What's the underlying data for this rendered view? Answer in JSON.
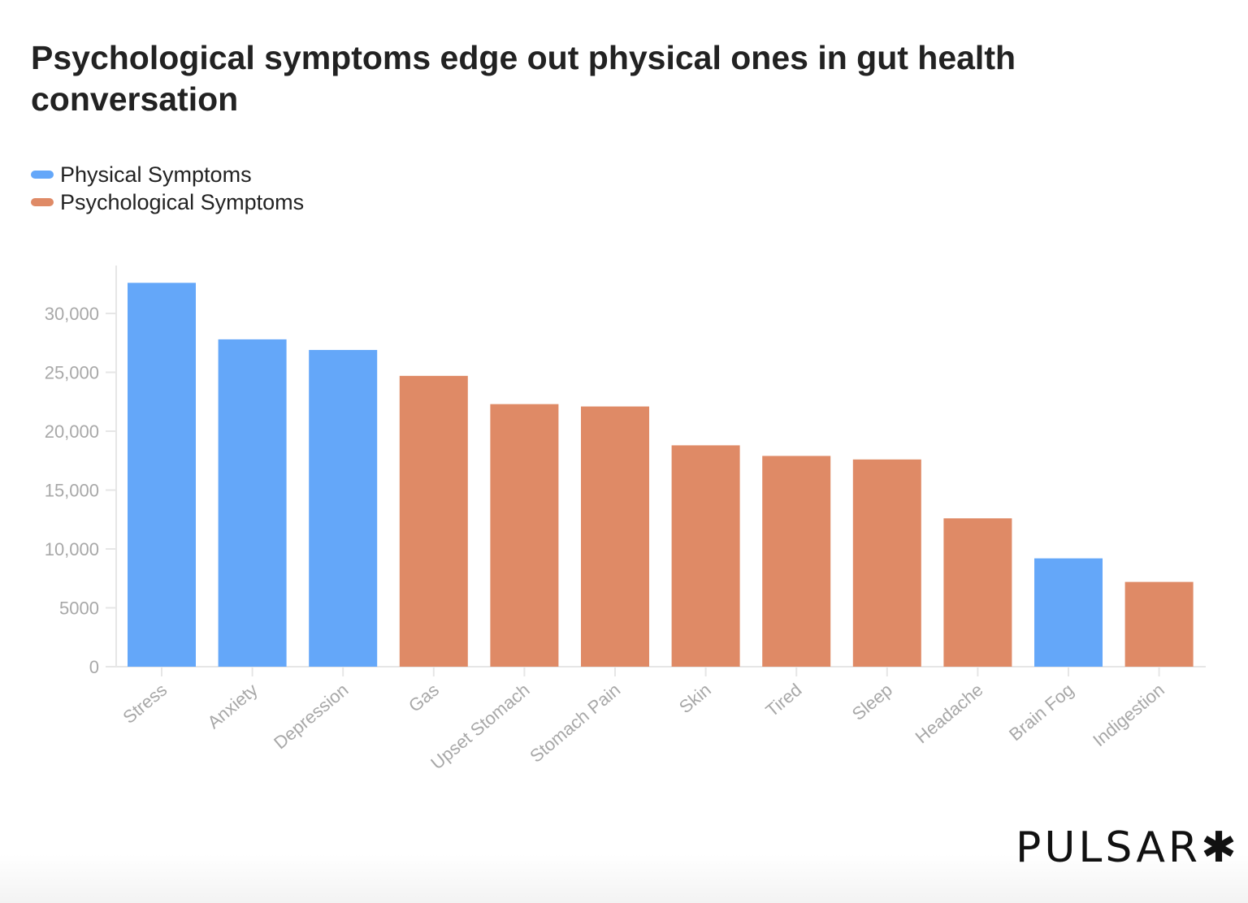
{
  "chart_data": {
    "type": "bar",
    "title": "Psychological symptoms edge out physical ones in gut health conversation",
    "xlabel": "",
    "ylabel": "",
    "ylim": [
      0,
      34000
    ],
    "yticks": [
      0,
      5000,
      10000,
      15000,
      20000,
      25000,
      30000
    ],
    "ytick_labels": [
      "0",
      "5000",
      "10,000",
      "15,000",
      "20,000",
      "25,000",
      "30,000"
    ],
    "grid": false,
    "legend_position": "top-left",
    "legend": [
      {
        "name": "Physical Symptoms",
        "color": "#64a7f9"
      },
      {
        "name": "Psychological Symptoms",
        "color": "#df8a66"
      }
    ],
    "categories": [
      "Stress",
      "Anxiety",
      "Depression",
      "Gas",
      "Upset Stomach",
      "Stomach Pain",
      "Skin",
      "Tired",
      "Sleep",
      "Headache",
      "Brain Fog",
      "Indigestion"
    ],
    "values": [
      32600,
      27800,
      26900,
      24700,
      22300,
      22100,
      18800,
      17900,
      17600,
      12600,
      9200,
      7200
    ],
    "series_index": [
      0,
      0,
      0,
      1,
      1,
      1,
      1,
      1,
      1,
      1,
      0,
      1
    ]
  },
  "branding": {
    "logo": "PULSAR✱"
  }
}
